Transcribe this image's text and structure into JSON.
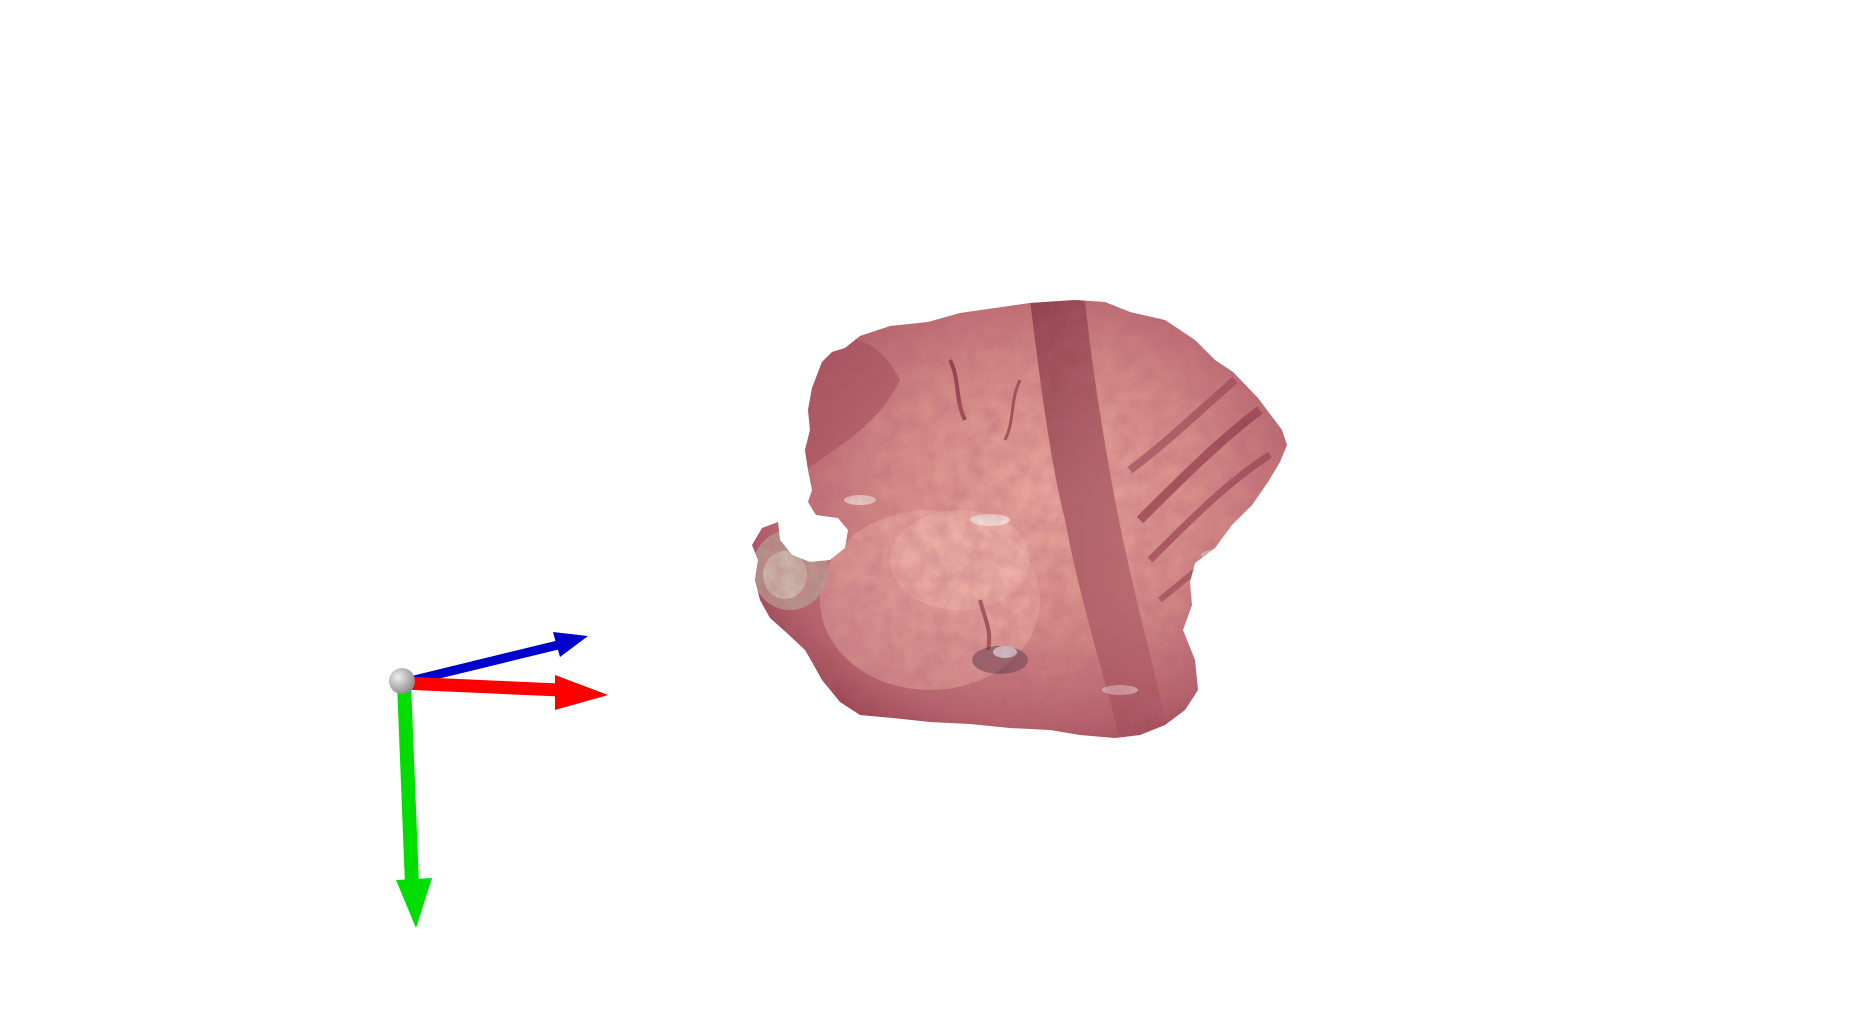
{
  "viewer": {
    "background_color": "#ffffff"
  },
  "point_cloud": {
    "base_color": "#c9767a",
    "dark_tone": "#8e3a44",
    "light_tone": "#e8a9a0",
    "highlight_tone": "#f2e6e2"
  },
  "axes": {
    "origin_icon": "sphere-icon",
    "x_axis": {
      "color": "#ff0000"
    },
    "y_axis": {
      "color": "#00dd00"
    },
    "z_axis": {
      "color": "#0000cc"
    },
    "origin_color": "#b0b0b0"
  }
}
